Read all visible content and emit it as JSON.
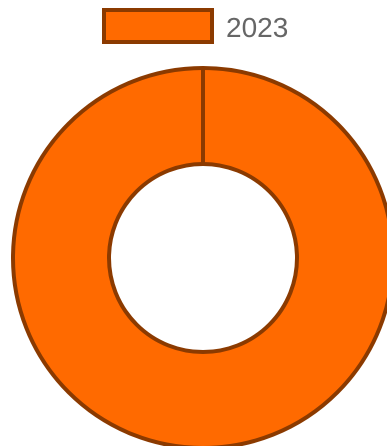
{
  "chart_data": {
    "type": "pie",
    "variant": "doughnut",
    "legend_position": "top",
    "series": [
      {
        "name": "2023",
        "categories": [
          ""
        ],
        "values": [
          100
        ],
        "color": "#ff6a00",
        "border_color": "#8b3a00"
      }
    ]
  }
}
